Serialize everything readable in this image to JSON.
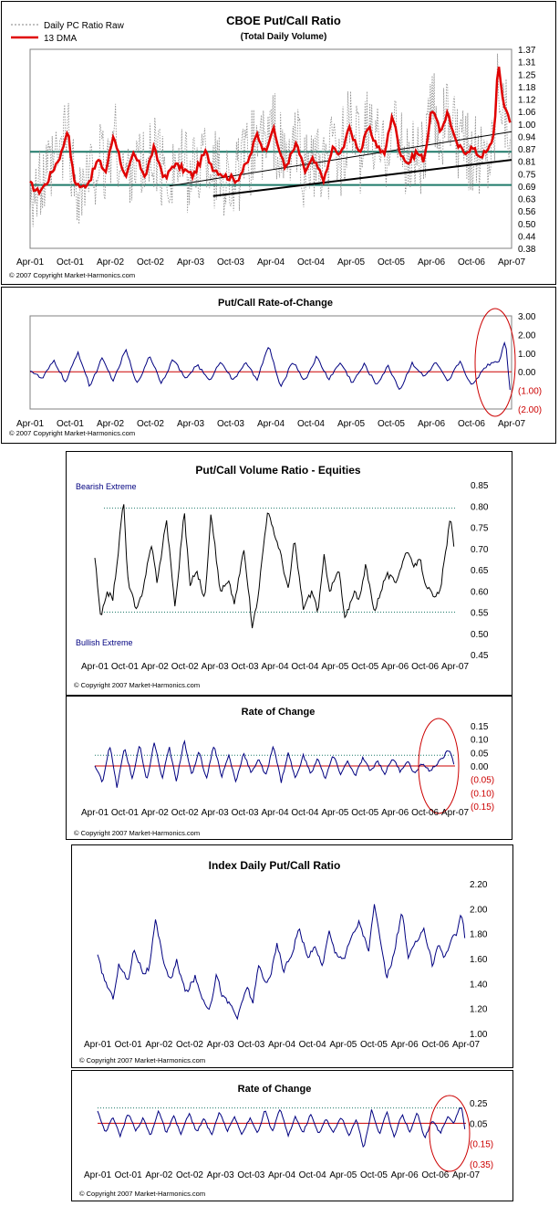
{
  "chart_data": [
    {
      "id": "cboe",
      "type": "line",
      "title": "CBOE Put/Call Ratio",
      "subtitle": "(Total Daily Volume)",
      "legend": [
        "Daily PC Ratio Raw",
        "13 DMA"
      ],
      "legend_placement": "top-left",
      "x_ticks": [
        "Apr-01",
        "Oct-01",
        "Apr-02",
        "Oct-02",
        "Apr-03",
        "Oct-03",
        "Apr-04",
        "Oct-04",
        "Apr-05",
        "Oct-05",
        "Apr-06",
        "Oct-06",
        "Apr-07"
      ],
      "y_ticks": [
        "1.37",
        "1.31",
        "1.25",
        "1.18",
        "1.12",
        "1.06",
        "1.00",
        "0.94",
        "0.87",
        "0.81",
        "0.75",
        "0.69",
        "0.63",
        "0.56",
        "0.50",
        "0.44",
        "0.38"
      ],
      "ylim": [
        0.38,
        1.37
      ],
      "horizontal_lines": [
        0.86,
        0.695
      ],
      "trendlines": [
        {
          "x": [
            2003.55,
            2007.3
          ],
          "y": [
            0.64,
            0.82
          ]
        },
        {
          "x": [
            2003.0,
            2007.3
          ],
          "y": [
            0.69,
            0.96
          ]
        }
      ],
      "series": [
        {
          "name": "Daily PC Ratio Raw",
          "style": "dotted",
          "color": "#808080"
        },
        {
          "name": "13 DMA",
          "style": "solid",
          "color": "#e00000",
          "x": [
            2001.25,
            2001.35,
            2001.45,
            2001.55,
            2001.65,
            2001.72,
            2001.8,
            2001.9,
            2002.0,
            2002.1,
            2002.2,
            2002.3,
            2002.45,
            2002.55,
            2002.7,
            2002.8,
            2002.95,
            2003.05,
            2003.15,
            2003.3,
            2003.45,
            2003.55,
            2003.7,
            2003.85,
            2004.0,
            2004.1,
            2004.2,
            2004.3,
            2004.45,
            2004.6,
            2004.7,
            2004.8,
            2004.95,
            2005.05,
            2005.15,
            2005.25,
            2005.4,
            2005.5,
            2005.6,
            2005.7,
            2005.8,
            2005.9,
            2006.0,
            2006.1,
            2006.2,
            2006.3,
            2006.4,
            2006.5,
            2006.6,
            2006.7,
            2006.8,
            2006.9,
            2007.0,
            2007.08,
            2007.13,
            2007.2,
            2007.28
          ],
          "y": [
            0.7,
            0.66,
            0.7,
            0.78,
            0.86,
            0.98,
            0.72,
            0.68,
            0.72,
            0.82,
            0.76,
            0.95,
            0.72,
            0.85,
            0.74,
            0.88,
            0.72,
            0.8,
            0.78,
            0.74,
            0.86,
            0.78,
            0.74,
            0.72,
            0.82,
            0.95,
            0.86,
            0.98,
            0.78,
            0.9,
            0.76,
            0.82,
            0.72,
            0.88,
            0.84,
            0.98,
            0.86,
            0.98,
            0.9,
            0.84,
            1.05,
            0.86,
            0.8,
            0.86,
            0.82,
            1.08,
            0.96,
            1.06,
            0.9,
            0.86,
            0.88,
            0.84,
            0.86,
            0.95,
            1.3,
            1.1,
            1.02
          ]
        }
      ],
      "copyright": "© 2007 Copyright Market-Harmonics.com"
    },
    {
      "id": "cboe_roc",
      "type": "line",
      "title": "Put/Call Rate-of-Change",
      "x_ticks": [
        "Apr-01",
        "Oct-01",
        "Apr-02",
        "Oct-02",
        "Apr-03",
        "Oct-03",
        "Apr-04",
        "Oct-04",
        "Apr-05",
        "Oct-05",
        "Apr-06",
        "Oct-06",
        "Apr-07"
      ],
      "y_ticks": [
        "3.00",
        "2.00",
        "1.00",
        "0.00",
        "(1.00)",
        "(2.00)"
      ],
      "y_tick_values": [
        3,
        2,
        1,
        0,
        -1,
        -2
      ],
      "ylim": [
        -2,
        3
      ],
      "zero_line_color": "#cc0000",
      "series": [
        {
          "name": "",
          "color": "#000080",
          "x": [
            2001.25,
            2001.4,
            2001.55,
            2001.7,
            2001.85,
            2002.0,
            2002.15,
            2002.3,
            2002.45,
            2002.6,
            2002.75,
            2002.9,
            2003.05,
            2003.2,
            2003.35,
            2003.5,
            2003.65,
            2003.8,
            2003.95,
            2004.1,
            2004.25,
            2004.4,
            2004.55,
            2004.7,
            2004.85,
            2005.0,
            2005.15,
            2005.3,
            2005.45,
            2005.6,
            2005.75,
            2005.9,
            2006.05,
            2006.2,
            2006.35,
            2006.5,
            2006.65,
            2006.8,
            2006.95,
            2007.05,
            2007.15,
            2007.22,
            2007.28
          ],
          "y": [
            0.1,
            -0.4,
            0.6,
            -0.6,
            1.1,
            -0.8,
            0.7,
            -0.5,
            1.2,
            -0.7,
            0.9,
            -0.6,
            0.7,
            -0.4,
            0.4,
            -0.5,
            0.6,
            -0.5,
            0.5,
            -0.4,
            1.4,
            -0.9,
            0.6,
            -0.5,
            0.8,
            -0.4,
            0.5,
            -0.6,
            0.4,
            -0.7,
            0.3,
            -1.0,
            0.5,
            -0.3,
            0.5,
            -0.6,
            0.6,
            -0.8,
            0.2,
            0.5,
            0.6,
            1.8,
            -0.9
          ]
        }
      ],
      "annotations": [
        {
          "type": "ellipse",
          "color": "#cc0000",
          "around": "Apr-07"
        }
      ],
      "copyright": "© 2007 Copyright Market-Harmonics.com"
    },
    {
      "id": "equities",
      "type": "line",
      "title": "Put/Call Volume Ratio - Equities",
      "labels": [
        "Bearish Extreme",
        "Bullish Extreme"
      ],
      "x_ticks": [
        "Apr-01",
        "Oct-01",
        "Apr-02",
        "Oct-02",
        "Apr-03",
        "Oct-03",
        "Apr-04",
        "Oct-04",
        "Apr-05",
        "Oct-05",
        "Apr-06",
        "Oct-06",
        "Apr-07"
      ],
      "y_ticks": [
        "0.85",
        "0.80",
        "0.75",
        "0.70",
        "0.65",
        "0.60",
        "0.55",
        "0.50",
        "0.45"
      ],
      "ylim": [
        0.45,
        0.85
      ],
      "horizontal_lines": [
        0.795,
        0.55
      ],
      "series": [
        {
          "name": "",
          "color": "#000000",
          "x": [
            2001.25,
            2001.35,
            2001.45,
            2001.55,
            2001.65,
            2001.73,
            2001.8,
            2001.95,
            2002.05,
            2002.2,
            2002.3,
            2002.45,
            2002.6,
            2002.75,
            2002.85,
            2002.95,
            2003.1,
            2003.2,
            2003.35,
            2003.5,
            2003.6,
            2003.75,
            2003.9,
            2004.0,
            2004.15,
            2004.25,
            2004.35,
            2004.5,
            2004.6,
            2004.75,
            2004.9,
            2005.0,
            2005.1,
            2005.2,
            2005.35,
            2005.45,
            2005.6,
            2005.7,
            2005.8,
            2005.95,
            2006.05,
            2006.15,
            2006.3,
            2006.4,
            2006.5,
            2006.6,
            2006.7,
            2006.8,
            2006.95,
            2007.05,
            2007.15,
            2007.22,
            2007.28
          ],
          "y": [
            0.68,
            0.53,
            0.6,
            0.58,
            0.7,
            0.82,
            0.63,
            0.55,
            0.6,
            0.71,
            0.62,
            0.77,
            0.56,
            0.79,
            0.61,
            0.65,
            0.58,
            0.79,
            0.6,
            0.62,
            0.57,
            0.7,
            0.51,
            0.6,
            0.79,
            0.74,
            0.7,
            0.6,
            0.72,
            0.56,
            0.6,
            0.55,
            0.68,
            0.6,
            0.65,
            0.53,
            0.6,
            0.58,
            0.66,
            0.55,
            0.6,
            0.64,
            0.62,
            0.66,
            0.7,
            0.65,
            0.68,
            0.62,
            0.58,
            0.6,
            0.7,
            0.77,
            0.71
          ]
        }
      ],
      "copyright": "© Copyright 2007 Market-Harmonics.com"
    },
    {
      "id": "equities_roc",
      "type": "line",
      "title": "Rate of Change",
      "x_ticks": [
        "Apr-01",
        "Oct-01",
        "Apr-02",
        "Oct-02",
        "Apr-03",
        "Oct-03",
        "Apr-04",
        "Oct-04",
        "Apr-05",
        "Oct-05",
        "Apr-06",
        "Oct-06",
        "Apr-07"
      ],
      "y_ticks": [
        "0.15",
        "0.10",
        "0.05",
        "0.00",
        "(0.05)",
        "(0.10)",
        "(0.15)"
      ],
      "y_tick_values": [
        0.15,
        0.1,
        0.05,
        0,
        -0.05,
        -0.1,
        -0.15
      ],
      "ylim": [
        -0.15,
        0.15
      ],
      "horizontal_lines": [
        0.04
      ],
      "zero_line_color": "#cc0000",
      "series": [
        {
          "name": "",
          "color": "#000080",
          "x": [
            2001.25,
            2001.38,
            2001.5,
            2001.62,
            2001.75,
            2001.88,
            2002.0,
            2002.12,
            2002.25,
            2002.38,
            2002.5,
            2002.62,
            2002.75,
            2002.88,
            2003.0,
            2003.12,
            2003.25,
            2003.38,
            2003.5,
            2003.62,
            2003.75,
            2003.88,
            2004.0,
            2004.12,
            2004.25,
            2004.38,
            2004.5,
            2004.62,
            2004.75,
            2004.88,
            2005.0,
            2005.12,
            2005.25,
            2005.38,
            2005.5,
            2005.62,
            2005.75,
            2005.88,
            2006.0,
            2006.12,
            2006.25,
            2006.38,
            2006.5,
            2006.62,
            2006.75,
            2006.88,
            2007.0,
            2007.1,
            2007.18,
            2007.23,
            2007.28
          ],
          "y": [
            0.0,
            -0.06,
            0.08,
            -0.08,
            0.07,
            -0.05,
            0.08,
            -0.06,
            0.09,
            -0.05,
            0.07,
            -0.06,
            0.1,
            -0.04,
            0.06,
            -0.05,
            0.08,
            -0.04,
            0.04,
            -0.06,
            0.05,
            -0.03,
            0.03,
            -0.04,
            0.08,
            -0.06,
            0.05,
            -0.05,
            0.04,
            -0.03,
            0.03,
            -0.05,
            0.04,
            -0.03,
            0.02,
            -0.04,
            0.03,
            -0.02,
            0.02,
            -0.03,
            0.03,
            -0.02,
            0.02,
            -0.03,
            0.01,
            -0.02,
            0.01,
            0.03,
            0.06,
            0.05,
            0.01
          ]
        }
      ],
      "annotations": [
        {
          "type": "ellipse",
          "color": "#cc0000",
          "around": "Apr-07"
        }
      ],
      "copyright": "© Copyright 2007 Market-Harmonics.com"
    },
    {
      "id": "index",
      "type": "line",
      "title": "Index Daily Put/Call Ratio",
      "x_ticks": [
        "Apr-01",
        "Oct-01",
        "Apr-02",
        "Oct-02",
        "Apr-03",
        "Oct-03",
        "Apr-04",
        "Oct-04",
        "Apr-05",
        "Oct-05",
        "Apr-06",
        "Oct-06",
        "Apr-07"
      ],
      "y_ticks": [
        "2.20",
        "2.00",
        "1.80",
        "1.60",
        "1.40",
        "1.20",
        "1.00"
      ],
      "ylim": [
        1.0,
        2.2
      ],
      "series": [
        {
          "name": "",
          "color": "#000080",
          "x": [
            2001.25,
            2001.35,
            2001.5,
            2001.6,
            2001.75,
            2001.85,
            2002.0,
            2002.1,
            2002.2,
            2002.35,
            2002.45,
            2002.55,
            2002.7,
            2002.85,
            2003.0,
            2003.1,
            2003.2,
            2003.3,
            2003.45,
            2003.55,
            2003.7,
            2003.8,
            2003.9,
            2004.0,
            2004.1,
            2004.2,
            2004.3,
            2004.45,
            2004.55,
            2004.7,
            2004.8,
            2004.95,
            2005.05,
            2005.15,
            2005.3,
            2005.4,
            2005.55,
            2005.7,
            2005.8,
            2005.9,
            2006.0,
            2006.1,
            2006.25,
            2006.35,
            2006.5,
            2006.6,
            2006.75,
            2006.85,
            2006.95,
            2007.05,
            2007.15,
            2007.22,
            2007.28
          ],
          "y": [
            1.62,
            1.45,
            1.28,
            1.55,
            1.42,
            1.68,
            1.48,
            1.52,
            1.9,
            1.55,
            1.42,
            1.58,
            1.32,
            1.45,
            1.25,
            1.2,
            1.48,
            1.3,
            1.22,
            1.12,
            1.38,
            1.25,
            1.55,
            1.4,
            1.48,
            1.72,
            1.5,
            1.65,
            1.85,
            1.6,
            1.7,
            1.55,
            1.82,
            1.65,
            1.6,
            1.75,
            1.9,
            1.65,
            2.05,
            1.7,
            1.45,
            1.6,
            1.98,
            1.6,
            1.75,
            1.85,
            1.55,
            1.72,
            1.6,
            1.75,
            1.8,
            1.98,
            1.78
          ]
        }
      ],
      "copyright": "© Copyright 2007 Market-Harmonics.com"
    },
    {
      "id": "index_roc",
      "type": "line",
      "title": "Rate of Change",
      "x_ticks": [
        "Apr-01",
        "Oct-01",
        "Apr-02",
        "Oct-02",
        "Apr-03",
        "Oct-03",
        "Apr-04",
        "Oct-04",
        "Apr-05",
        "Oct-05",
        "Apr-06",
        "Oct-06",
        "Apr-07"
      ],
      "y_ticks": [
        "0.25",
        "0.05",
        "(0.15)",
        "(0.35)"
      ],
      "y_tick_values": [
        0.25,
        0.05,
        -0.15,
        -0.35
      ],
      "ylim": [
        -0.35,
        0.25
      ],
      "horizontal_lines": [
        0.2
      ],
      "zero_line_value": 0.05,
      "zero_line_color": "#cc0000",
      "series": [
        {
          "name": "",
          "color": "#000080",
          "x": [
            2001.25,
            2001.38,
            2001.5,
            2001.62,
            2001.75,
            2001.88,
            2002.0,
            2002.12,
            2002.25,
            2002.38,
            2002.5,
            2002.62,
            2002.75,
            2002.88,
            2003.0,
            2003.12,
            2003.25,
            2003.38,
            2003.5,
            2003.62,
            2003.75,
            2003.88,
            2004.0,
            2004.12,
            2004.25,
            2004.38,
            2004.5,
            2004.62,
            2004.75,
            2004.88,
            2005.0,
            2005.12,
            2005.25,
            2005.38,
            2005.5,
            2005.62,
            2005.75,
            2005.88,
            2006.0,
            2006.12,
            2006.25,
            2006.38,
            2006.5,
            2006.62,
            2006.75,
            2006.88,
            2007.0,
            2007.1,
            2007.18,
            2007.23,
            2007.28
          ],
          "y": [
            0.18,
            -0.05,
            0.12,
            -0.08,
            0.15,
            -0.02,
            0.1,
            -0.08,
            0.18,
            -0.05,
            0.12,
            -0.06,
            0.15,
            -0.04,
            0.1,
            -0.07,
            0.16,
            -0.03,
            0.12,
            -0.06,
            0.1,
            -0.05,
            0.18,
            -0.04,
            0.2,
            -0.08,
            0.12,
            -0.05,
            0.14,
            -0.06,
            0.1,
            -0.05,
            0.12,
            -0.08,
            0.1,
            -0.2,
            0.18,
            -0.06,
            0.16,
            -0.08,
            0.14,
            -0.04,
            0.16,
            -0.1,
            0.08,
            -0.05,
            0.12,
            0.05,
            0.18,
            0.2,
            0.0
          ]
        }
      ],
      "annotations": [
        {
          "type": "ellipse",
          "color": "#cc0000",
          "around": "Apr-07"
        }
      ],
      "copyright": "© Copyright 2007 Market-Harmonics.com"
    }
  ]
}
